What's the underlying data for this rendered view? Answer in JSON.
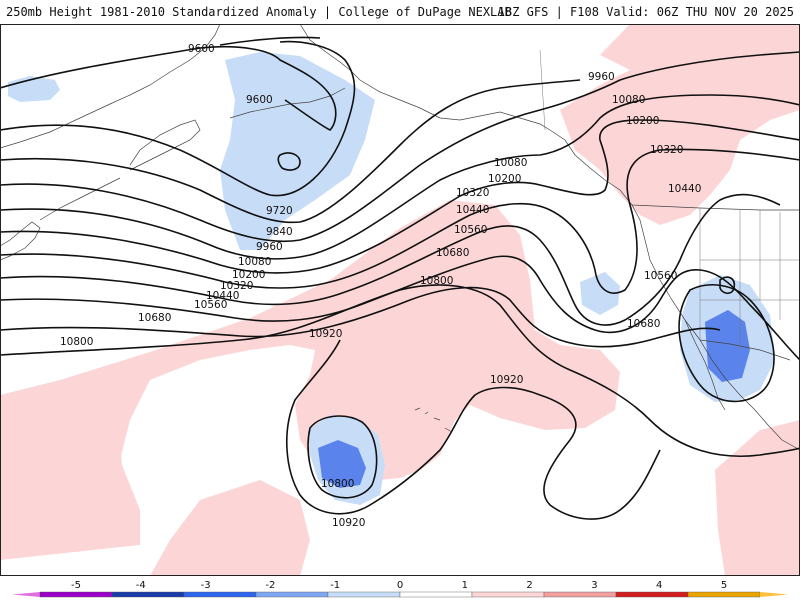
{
  "header": {
    "title_left": "250mb Height 1981-2010 Standardized Anomaly | College of DuPage NEXLAB",
    "title_right": "18Z GFS | F108 Valid: 06Z THU NOV 20 2025"
  },
  "contour_labels": {
    "l9600a": "9600",
    "l9600b": "9600",
    "l9720": "9720",
    "l9840": "9840",
    "l9960a": "9960",
    "l9960b": "9960",
    "l10080a": "10080",
    "l10080b": "10080",
    "l10080c": "10080",
    "l10200a": "10200",
    "l10200b": "10200",
    "l10200c": "10200",
    "l10320a": "10320",
    "l10320b": "10320",
    "l10320c": "10320",
    "l10440a": "10440",
    "l10440b": "10440",
    "l10440c": "10440",
    "l10560a": "10560",
    "l10560b": "10560",
    "l10560c": "10560",
    "l10680a": "10680",
    "l10680b": "10680",
    "l10680c": "10680",
    "l10800a": "10800",
    "l10800b": "10800",
    "l10800c": "10800",
    "l10920a": "10920",
    "l10920b": "10920",
    "l10920c": "10920"
  },
  "colorbar": {
    "ticks": [
      "-5",
      "-4",
      "-3",
      "-2",
      "-1",
      "0",
      "1",
      "2",
      "3",
      "4",
      "5"
    ],
    "colors": [
      "#9a00c8",
      "#1a3ca8",
      "#2e66ee",
      "#7ea7f3",
      "#c7ddf7",
      "#ffffff",
      "#fcd6d6",
      "#f2a0a0",
      "#d21e1e",
      "#e9a400"
    ],
    "low_end_color": "#e070e0",
    "high_end_color": "#ffc040"
  },
  "anomaly_colors": {
    "positive_light": "#fcd6d6",
    "negative_light": "#c7ddf7",
    "negative_medium": "#5a84ec"
  }
}
